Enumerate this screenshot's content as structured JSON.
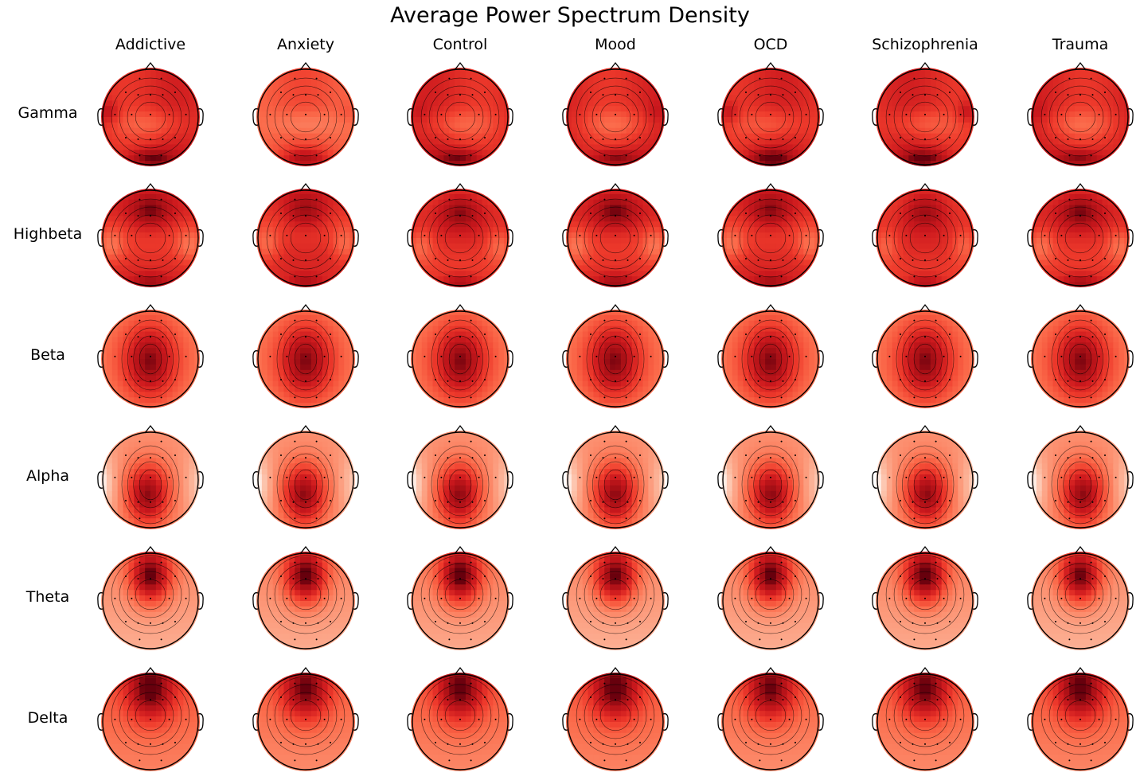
{
  "figure": {
    "title": "Average Power Spectrum Density"
  },
  "chart_data": {
    "type": "heatmap",
    "title": "Average Power Spectrum Density",
    "subtype": "EEG scalp topomap grid",
    "colormap": "Reds",
    "columns": [
      "Addictive",
      "Anxiety",
      "Control",
      "Mood",
      "OCD",
      "Schizophrenia",
      "Trauma"
    ],
    "rows": [
      "Gamma",
      "Highbeta",
      "Beta",
      "Alpha",
      "Theta",
      "Delta"
    ],
    "contour_levels": 6,
    "colors": {
      "low": "#fff5f0",
      "mid": "#fb6a4a",
      "high": "#67000d",
      "outline": "#000000"
    }
  }
}
